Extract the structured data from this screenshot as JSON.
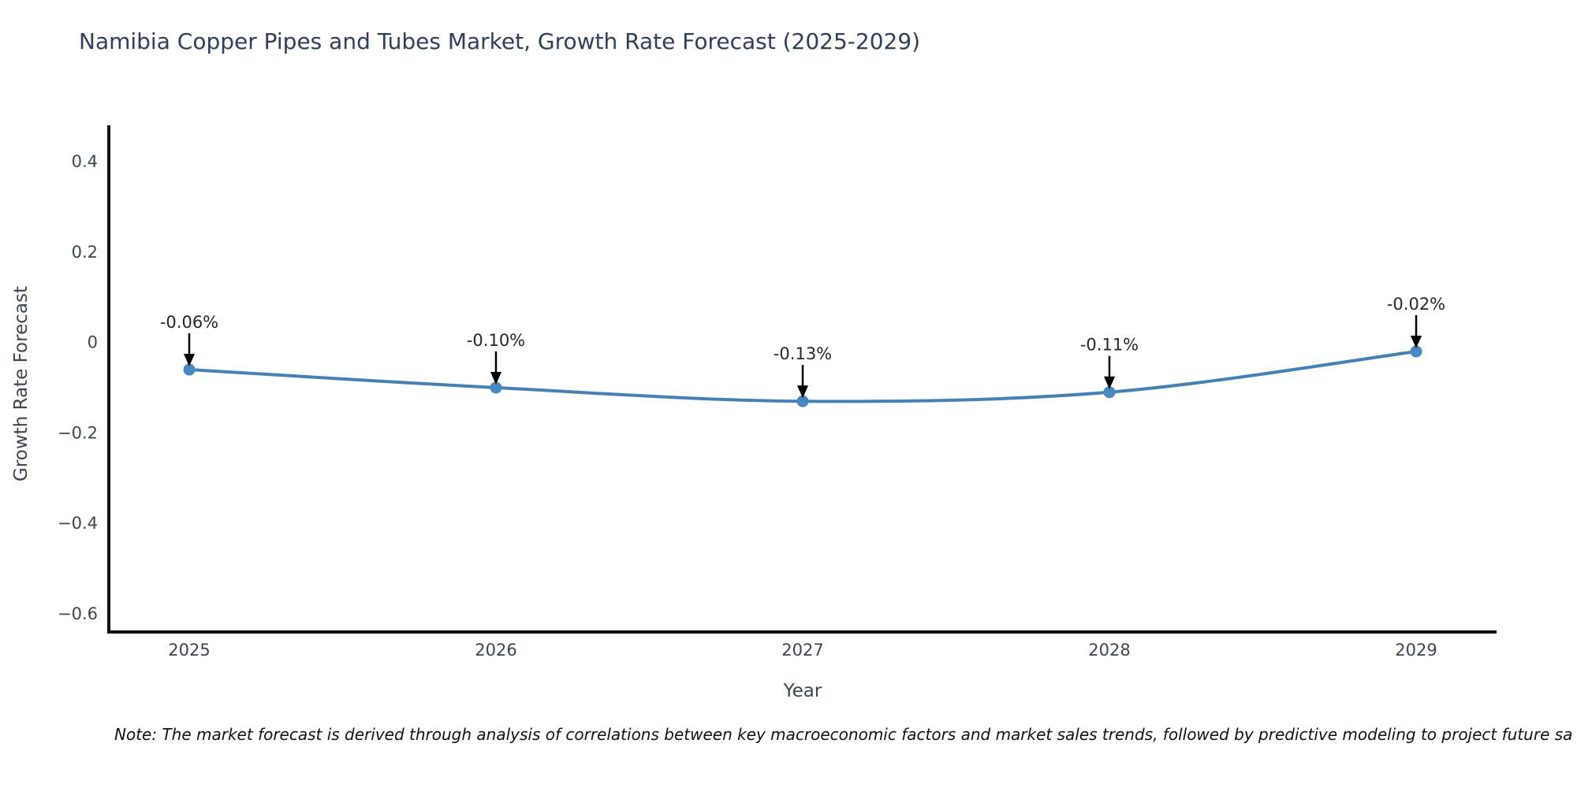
{
  "chart_data": {
    "type": "line",
    "title": "Namibia Copper Pipes and Tubes Market, Growth Rate Forecast (2025-2029)",
    "xlabel": "Year",
    "ylabel": "Growth Rate Forecast",
    "x": [
      2025,
      2026,
      2027,
      2028,
      2029
    ],
    "series": [
      {
        "name": "Growth Rate Forecast",
        "values": [
          -0.06,
          -0.1,
          -0.13,
          -0.11,
          -0.02
        ]
      }
    ],
    "point_labels": [
      "-0.06%",
      "-0.10%",
      "-0.13%",
      "-0.11%",
      "-0.02%"
    ],
    "xticks": [
      "2025",
      "2026",
      "2027",
      "2028",
      "2029"
    ],
    "yticks": {
      "values": [
        0.4,
        0.2,
        0,
        -0.2,
        -0.4,
        -0.6
      ],
      "labels": [
        "0.4",
        "0.2",
        "0",
        "−0.2",
        "−0.4",
        "−0.6"
      ]
    },
    "ylim": [
      -0.64,
      0.48
    ],
    "grid": false,
    "legend": "none",
    "annotations": "arrow-down-to-point",
    "note": "Note: The market forecast is derived through analysis of correlations between key macroeconomic factors and market sales trends, followed by predictive modeling to project future sa",
    "colors": {
      "line": "#4681b4",
      "marker": "#4489c4",
      "axis": "#111111",
      "arrow": "#000000",
      "title": "#2e3f5e",
      "labels": "#3b4554",
      "annotation_text": "#262626",
      "note_text": "#111111",
      "background": "#ffffff"
    }
  }
}
